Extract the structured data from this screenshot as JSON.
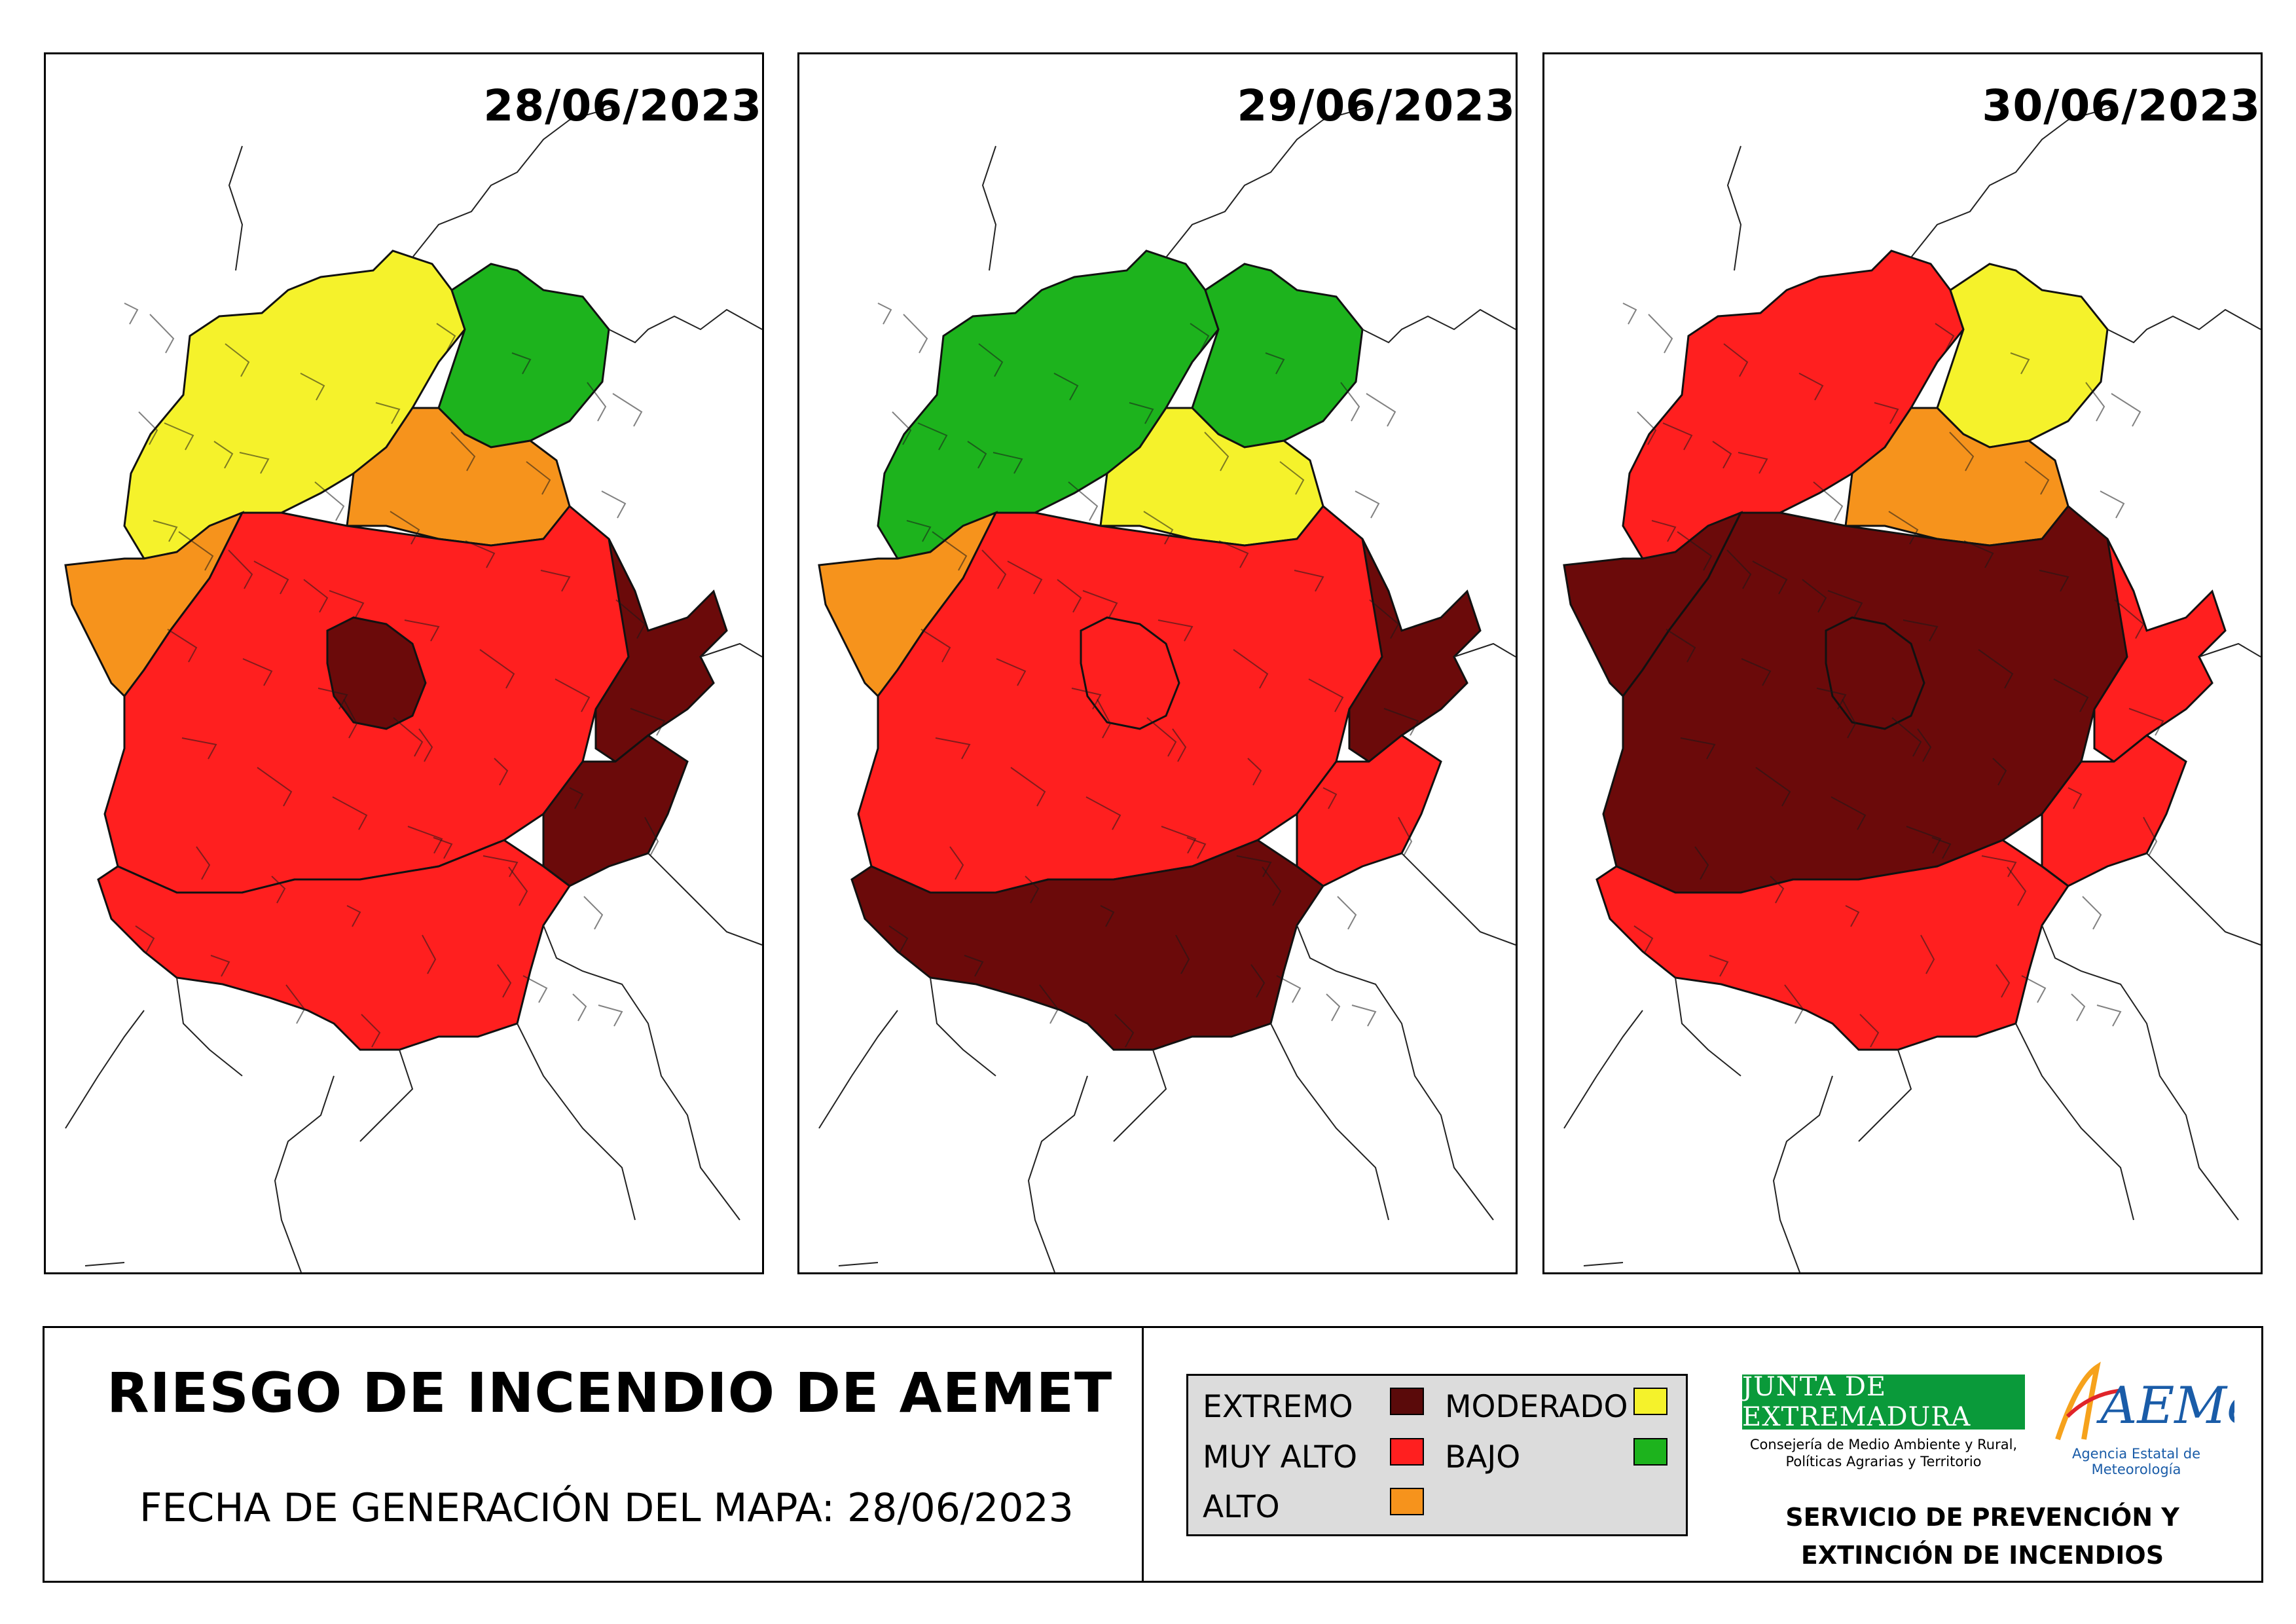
{
  "maps": [
    {
      "id": "map-1",
      "date": "28/06/2023",
      "colors": {
        "north": "#f5f22b",
        "northeast": "#1db31d",
        "north_central": "#f6931c",
        "center": "#ff1f1f",
        "core": "#6b0a0a",
        "east": "#6b0a0a",
        "southeast": "#6b0a0a",
        "west": "#f6931c",
        "south": "#ff1f1f"
      }
    },
    {
      "id": "map-2",
      "date": "29/06/2023",
      "colors": {
        "north": "#1db31d",
        "northeast": "#1db31d",
        "north_central": "#f5f22b",
        "center": "#ff1f1f",
        "core": "#ff1f1f",
        "east": "#6b0a0a",
        "southeast": "#ff1f1f",
        "west": "#f6931c",
        "south": "#6b0a0a"
      }
    },
    {
      "id": "map-3",
      "date": "30/06/2023",
      "colors": {
        "north": "#ff1f1f",
        "northeast": "#f5f22b",
        "north_central": "#f6931c",
        "center": "#6b0a0a",
        "core": "#6b0a0a",
        "east": "#ff1f1f",
        "southeast": "#ff1f1f",
        "west": "#6b0a0a",
        "south": "#ff1f1f"
      }
    }
  ],
  "title": "RIESGO DE INCENDIO DE AEMET",
  "generation_date_label": "FECHA DE GENERACIÓN DEL MAPA: 28/06/2023",
  "legend": [
    {
      "label": "EXTREMO",
      "color": "#5a0a0a"
    },
    {
      "label": "MUY ALTO",
      "color": "#ff1f1f"
    },
    {
      "label": "ALTO",
      "color": "#f6931c"
    },
    {
      "label": "MODERADO",
      "color": "#f5f22b"
    },
    {
      "label": "BAJO",
      "color": "#1db31d"
    }
  ],
  "logos": {
    "junta_name": "JUNTA DE EXTREMADURA",
    "junta_subtitle_1": "Consejería de Medio Ambiente y Rural,",
    "junta_subtitle_2": "Políticas Agrarias y Territorio",
    "aemet_name": "AEMet",
    "aemet_subtitle": "Agencia Estatal de Meteorología"
  },
  "service": {
    "line1": "SERVICIO DE PREVENCIÓN Y",
    "line2": "EXTINCIÓN DE INCENDIOS"
  }
}
